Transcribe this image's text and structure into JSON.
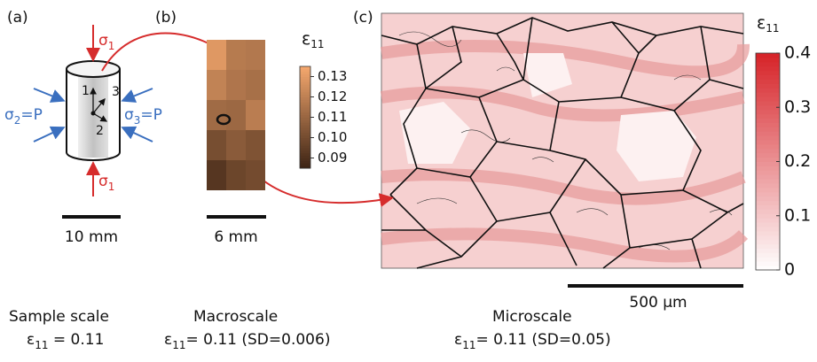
{
  "panel_a": {
    "label": "(a)",
    "sigma_top": {
      "symbol": "σ",
      "sub": "1"
    },
    "sigma_bottom": {
      "symbol": "σ",
      "sub": "1"
    },
    "sigma_left": {
      "symbol": "σ",
      "sub": "2",
      "rest": "=P"
    },
    "sigma_right": {
      "symbol": "σ",
      "sub": "3",
      "rest": "=P"
    },
    "axes": [
      "1",
      "2",
      "3"
    ],
    "scale_bar": "10 mm"
  },
  "panel_b": {
    "label": "(b)",
    "colorbar_title": {
      "symbol": "ε",
      "sub": "11"
    },
    "clim": [
      0.085,
      0.135
    ],
    "ticks": [
      0.13,
      0.12,
      0.11,
      {
        "value": 0.1,
        "label": "0.10"
      },
      0.09
    ],
    "values": [
      [
        0.129,
        0.118,
        0.117
      ],
      [
        0.121,
        0.116,
        0.114
      ],
      [
        0.112,
        0.111,
        0.119
      ],
      [
        0.101,
        0.106,
        0.103
      ],
      [
        0.092,
        0.098,
        0.1
      ]
    ],
    "scale_bar": "6 mm"
  },
  "panel_c": {
    "label": "(c)",
    "colorbar_title": {
      "symbol": "ε",
      "sub": "11"
    },
    "clim": [
      0,
      0.4
    ],
    "ticks": [
      0.4,
      0.3,
      0.2,
      0.1,
      0
    ],
    "scale_bar": "500 µm"
  },
  "summaries": [
    {
      "name": "Sample scale",
      "symbol": "ε",
      "sub": "11",
      "text": " = 0.11"
    },
    {
      "name": "Macroscale",
      "symbol": "ε",
      "sub": "11",
      "text": "= 0.11 (SD=0.006)"
    },
    {
      "name": "Microscale",
      "symbol": "ε",
      "sub": "11",
      "text": "= 0.11 (SD=0.05)"
    }
  ]
}
